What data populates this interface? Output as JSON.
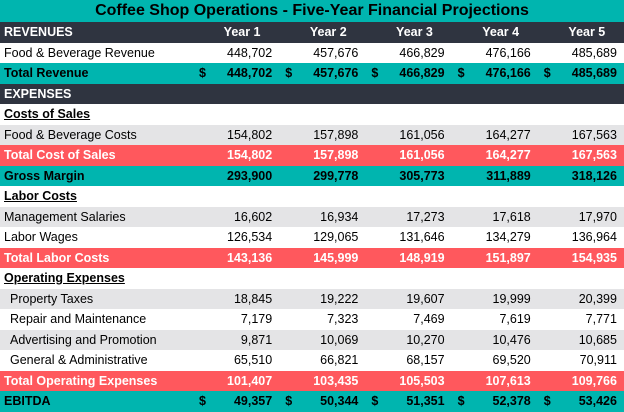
{
  "title": "Coffee Shop Operations - Five-Year Financial Projections",
  "years": [
    "Year 1",
    "Year 2",
    "Year 3",
    "Year 4",
    "Year 5"
  ],
  "colors": {
    "teal": "#00B5AF",
    "dark": "#2F3440",
    "red": "#FF585D",
    "gray": "#E4E4E6"
  },
  "rows": [
    {
      "type": "header",
      "label": "REVENUES"
    },
    {
      "type": "white",
      "label": "Food & Beverage Revenue",
      "values": [
        "448,702",
        "457,676",
        "466,829",
        "476,166",
        "485,689"
      ]
    },
    {
      "type": "teal",
      "label": "Total Revenue",
      "currency": "$",
      "values": [
        "448,702",
        "457,676",
        "466,829",
        "476,166",
        "485,689"
      ]
    },
    {
      "type": "dark",
      "label": "EXPENSES"
    },
    {
      "type": "section",
      "label": "Costs of Sales"
    },
    {
      "type": "gray",
      "label": "Food & Beverage Costs",
      "values": [
        "154,802",
        "157,898",
        "161,056",
        "164,277",
        "167,563"
      ]
    },
    {
      "type": "red",
      "label": "Total Cost of Sales",
      "values": [
        "154,802",
        "157,898",
        "161,056",
        "164,277",
        "167,563"
      ]
    },
    {
      "type": "teal",
      "label": "Gross Margin",
      "values": [
        "293,900",
        "299,778",
        "305,773",
        "311,889",
        "318,126"
      ]
    },
    {
      "type": "section",
      "label": "Labor Costs"
    },
    {
      "type": "gray",
      "label": "Management Salaries",
      "values": [
        "16,602",
        "16,934",
        "17,273",
        "17,618",
        "17,970"
      ]
    },
    {
      "type": "white",
      "label": "Labor Wages",
      "values": [
        "126,534",
        "129,065",
        "131,646",
        "134,279",
        "136,964"
      ]
    },
    {
      "type": "red",
      "label": "Total Labor Costs",
      "values": [
        "143,136",
        "145,999",
        "148,919",
        "151,897",
        "154,935"
      ]
    },
    {
      "type": "section",
      "label": "Operating Expenses"
    },
    {
      "type": "gray",
      "indent": true,
      "label": "Property Taxes",
      "values": [
        "18,845",
        "19,222",
        "19,607",
        "19,999",
        "20,399"
      ]
    },
    {
      "type": "white",
      "indent": true,
      "label": "Repair and Maintenance",
      "values": [
        "7,179",
        "7,323",
        "7,469",
        "7,619",
        "7,771"
      ]
    },
    {
      "type": "gray",
      "indent": true,
      "label": "Advertising and Promotion",
      "values": [
        "9,871",
        "10,069",
        "10,270",
        "10,476",
        "10,685"
      ]
    },
    {
      "type": "white",
      "indent": true,
      "label": "General & Administrative",
      "values": [
        "65,510",
        "66,821",
        "68,157",
        "69,520",
        "70,911"
      ]
    },
    {
      "type": "red",
      "label": "Total Operating Expenses",
      "values": [
        "101,407",
        "103,435",
        "105,503",
        "107,613",
        "109,766"
      ]
    },
    {
      "type": "teal",
      "label": "EBITDA",
      "currency": "$",
      "values": [
        "49,357",
        "50,344",
        "51,351",
        "52,378",
        "53,426"
      ]
    }
  ]
}
